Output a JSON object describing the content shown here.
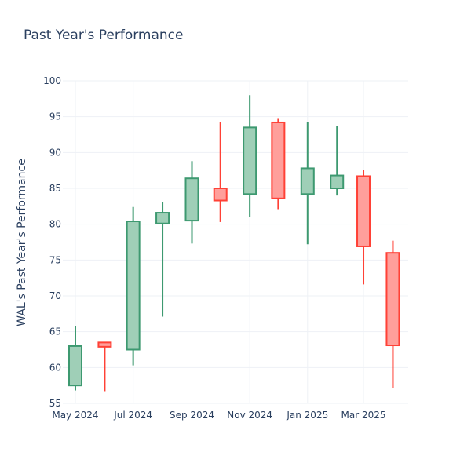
{
  "chart_data": {
    "type": "candlestick",
    "title": "Past Year's Performance",
    "ylabel": "WAL's Past Year's Performance",
    "xlabel": "",
    "ylim": [
      55,
      100
    ],
    "yticks": [
      55,
      60,
      65,
      70,
      75,
      80,
      85,
      90,
      95,
      100
    ],
    "xticks": [
      "May 2024",
      "Jul 2024",
      "Sep 2024",
      "Nov 2024",
      "Jan 2025",
      "Mar 2025"
    ],
    "grid": true,
    "colors": {
      "increasing_line": "#3d9970",
      "increasing_fill": "#9fcfb7",
      "decreasing_line": "#ff4136",
      "decreasing_fill": "#ff9f9b"
    },
    "candles": [
      {
        "date": "2024-05",
        "open": 57.5,
        "high": 65.8,
        "low": 56.8,
        "close": 63.0
      },
      {
        "date": "2024-06",
        "open": 63.5,
        "high": 63.5,
        "low": 56.7,
        "close": 62.9
      },
      {
        "date": "2024-07",
        "open": 62.5,
        "high": 82.4,
        "low": 60.3,
        "close": 80.4
      },
      {
        "date": "2024-08",
        "open": 80.1,
        "high": 83.1,
        "low": 67.1,
        "close": 81.6
      },
      {
        "date": "2024-09",
        "open": 80.5,
        "high": 88.8,
        "low": 77.3,
        "close": 86.4
      },
      {
        "date": "2024-10",
        "open": 85.0,
        "high": 94.2,
        "low": 80.3,
        "close": 83.3
      },
      {
        "date": "2024-11",
        "open": 84.2,
        "high": 98.0,
        "low": 81.0,
        "close": 93.5
      },
      {
        "date": "2024-12",
        "open": 94.2,
        "high": 94.8,
        "low": 82.1,
        "close": 83.6
      },
      {
        "date": "2025-01",
        "open": 84.2,
        "high": 94.3,
        "low": 77.2,
        "close": 87.8
      },
      {
        "date": "2025-02",
        "open": 85.0,
        "high": 93.7,
        "low": 84.0,
        "close": 86.8
      },
      {
        "date": "2025-03",
        "open": 86.7,
        "high": 87.6,
        "low": 71.6,
        "close": 76.9
      },
      {
        "date": "2025-04",
        "open": 76.0,
        "high": 77.7,
        "low": 57.1,
        "close": 63.1
      }
    ]
  }
}
